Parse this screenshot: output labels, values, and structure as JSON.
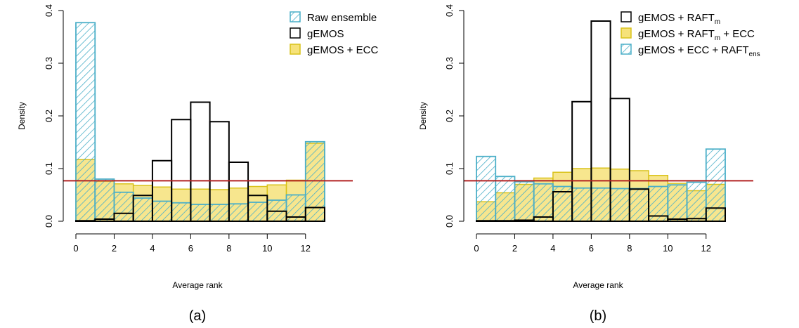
{
  "colors": {
    "raw_stroke": "#4BAFC8",
    "yellow_fill": "#F6E27A",
    "yellow_stroke": "#D9C21A",
    "black": "#000000",
    "ref_line": "#B22222"
  },
  "chart_data": [
    {
      "type": "bar",
      "caption": "(a)",
      "xlabel": "Average rank",
      "ylabel": "Density",
      "xlim": [
        0,
        13
      ],
      "ylim": [
        0,
        0.4
      ],
      "xticks": [
        0,
        2,
        4,
        6,
        8,
        10,
        12
      ],
      "yticks": [
        0.0,
        0.1,
        0.2,
        0.3,
        0.4
      ],
      "ytick_labels": [
        "0.0",
        "0.1",
        "0.2",
        "0.3",
        "0.4"
      ],
      "grid": false,
      "legend_position": "top-right",
      "bin_edges": [
        0,
        1,
        2,
        3,
        4,
        5,
        6,
        7,
        8,
        9,
        10,
        11,
        12,
        13
      ],
      "reference_line": 0.0769,
      "series": [
        {
          "name": "Raw ensemble",
          "style": "hatched",
          "values": [
            0.377,
            0.08,
            0.055,
            0.044,
            0.038,
            0.035,
            0.032,
            0.032,
            0.033,
            0.036,
            0.04,
            0.05,
            0.151
          ]
        },
        {
          "name": "gEMOS",
          "style": "outline",
          "values": [
            0.001,
            0.004,
            0.015,
            0.049,
            0.115,
            0.193,
            0.226,
            0.189,
            0.112,
            0.049,
            0.019,
            0.008,
            0.026
          ]
        },
        {
          "name": "gEMOS + ECC",
          "style": "filled",
          "values": [
            0.117,
            0.076,
            0.071,
            0.068,
            0.065,
            0.061,
            0.061,
            0.06,
            0.063,
            0.066,
            0.069,
            0.078,
            0.148
          ]
        }
      ],
      "draw_order": [
        "gEMOS + ECC",
        "Raw ensemble",
        "gEMOS"
      ]
    },
    {
      "type": "bar",
      "caption": "(b)",
      "xlabel": "Average rank",
      "ylabel": "Density",
      "xlim": [
        0,
        13
      ],
      "ylim": [
        0,
        0.4
      ],
      "xticks": [
        0,
        2,
        4,
        6,
        8,
        10,
        12
      ],
      "yticks": [
        0.0,
        0.1,
        0.2,
        0.3,
        0.4
      ],
      "ytick_labels": [
        "0.0",
        "0.1",
        "0.2",
        "0.3",
        "0.4"
      ],
      "grid": false,
      "legend_position": "top-right",
      "bin_edges": [
        0,
        1,
        2,
        3,
        4,
        5,
        6,
        7,
        8,
        9,
        10,
        11,
        12,
        13
      ],
      "reference_line": 0.0769,
      "series": [
        {
          "name": "gEMOS + RAFT",
          "name_sub": "m",
          "name_suffix": "",
          "style": "outline",
          "values": [
            0.001,
            0.001,
            0.002,
            0.008,
            0.056,
            0.227,
            0.38,
            0.233,
            0.061,
            0.01,
            0.004,
            0.005,
            0.025
          ]
        },
        {
          "name": "gEMOS + RAFT",
          "name_sub": "m",
          "name_suffix": " + ECC",
          "style": "filled",
          "values": [
            0.037,
            0.054,
            0.07,
            0.082,
            0.093,
            0.1,
            0.101,
            0.099,
            0.096,
            0.087,
            0.072,
            0.058,
            0.07
          ]
        },
        {
          "name": "gEMOS + ECC + RAFT",
          "name_sub": "ens",
          "name_suffix": "",
          "style": "hatched",
          "values": [
            0.123,
            0.085,
            0.075,
            0.071,
            0.066,
            0.063,
            0.063,
            0.062,
            0.062,
            0.066,
            0.069,
            0.074,
            0.137
          ]
        }
      ],
      "draw_order": [
        "gEMOS + RAFTm + ECC",
        "gEMOS + ECC + RAFTens",
        "gEMOS + RAFTm"
      ]
    }
  ]
}
